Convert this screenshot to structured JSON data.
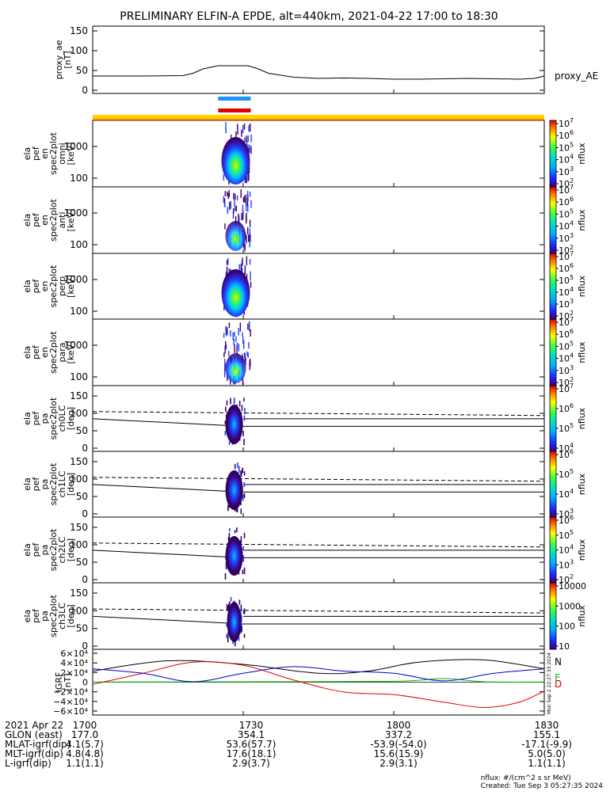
{
  "title": "PRELIMINARY ELFIN-A EPDE, alt=440km, 2021-04-22 17:00 to 18:30",
  "colors": {
    "background": "#ffffff",
    "axis": "#000000",
    "sci_zone_bar": "#ffd400",
    "sci_zone_edge": "#ff7f00",
    "blue_bar": "#1e90ff",
    "red_bar": "#e00000",
    "igrf_N": "#000000",
    "igrf_E": "#00c000",
    "igrf_D": "#e00000",
    "igrf_blue": "#0000d0"
  },
  "panels": [
    {
      "id": "proxy_ae",
      "ylabel_lines": [
        "proxy_ae",
        "[nT]"
      ],
      "right_label": "proxy_AE",
      "yticks": [
        "150",
        "100",
        "50",
        "0"
      ]
    },
    {
      "id": "spec-omni",
      "ylabel_lines": [
        "ela",
        "pef",
        "en",
        "spec2plot",
        "omni",
        "[keV]"
      ],
      "yticks": [
        "1000",
        "100"
      ],
      "cbar_label": "nflux"
    },
    {
      "id": "spec-anti",
      "ylabel_lines": [
        "ela",
        "pef",
        "en",
        "spec2plot",
        "anti",
        "[keV]"
      ],
      "yticks": [
        "1000",
        "100"
      ],
      "cbar_label": "nflux"
    },
    {
      "id": "spec-perp",
      "ylabel_lines": [
        "ela",
        "pef",
        "en",
        "spec2plot",
        "perp",
        "[keV]"
      ],
      "yticks": [
        "1000",
        "100"
      ],
      "cbar_label": "nflux"
    },
    {
      "id": "spec-para",
      "ylabel_lines": [
        "ela",
        "pef",
        "en",
        "spec2plot",
        "para",
        "[keV]"
      ],
      "yticks": [
        "1000",
        "100"
      ],
      "cbar_label": "nflux"
    },
    {
      "id": "pa-ch0",
      "ylabel_lines": [
        "ela",
        "pef",
        "pa",
        "spec2plot",
        "ch0LC",
        "[deg]"
      ],
      "yticks": [
        "150",
        "100",
        "50",
        "0"
      ],
      "cbar_label": "nflux"
    },
    {
      "id": "pa-ch1",
      "ylabel_lines": [
        "ela",
        "pef",
        "pa",
        "spec2plot",
        "ch1LC",
        "[deg]"
      ],
      "yticks": [
        "150",
        "100",
        "50",
        "0"
      ],
      "cbar_label": "nflux"
    },
    {
      "id": "pa-ch2",
      "ylabel_lines": [
        "ela",
        "pef",
        "pa",
        "spec2plot",
        "ch2LC",
        "[deg]"
      ],
      "yticks": [
        "150",
        "100",
        "50",
        "0"
      ],
      "cbar_label": "nflux"
    },
    {
      "id": "pa-ch3",
      "ylabel_lines": [
        "ela",
        "pef",
        "pa",
        "spec2plot",
        "ch3LC",
        "[deg]"
      ],
      "yticks": [
        "150",
        "100",
        "50",
        "0"
      ],
      "cbar_label": "nflux"
    },
    {
      "id": "igrf",
      "ylabel_lines": [
        "IGRF",
        "[nT]"
      ],
      "yticks": [
        "6×10⁴",
        "4×10⁴",
        "2×10⁴",
        "0",
        "−2×10⁴",
        "−4×10⁴",
        "−6×10⁴"
      ],
      "legend": [
        "N",
        "E",
        "D"
      ],
      "stamp": "Mon Sep  2 22:27:33 2024"
    }
  ],
  "colorbars": [
    {
      "panel": "spec-omni",
      "exps": [
        "7",
        "6",
        "5",
        "4",
        "3",
        "2"
      ]
    },
    {
      "panel": "spec-anti",
      "exps": [
        "7",
        "6",
        "5",
        "4",
        "3",
        "2"
      ]
    },
    {
      "panel": "spec-perp",
      "exps": [
        "7",
        "6",
        "5",
        "4",
        "3",
        "2"
      ]
    },
    {
      "panel": "spec-para",
      "exps": [
        "7",
        "6",
        "5",
        "4",
        "3",
        "2"
      ]
    },
    {
      "panel": "pa-ch0",
      "exps": [
        "7",
        "6",
        "5",
        "4"
      ]
    },
    {
      "panel": "pa-ch1",
      "exps": [
        "6",
        "5",
        "4",
        "3"
      ]
    },
    {
      "panel": "pa-ch2",
      "exps": [
        "6",
        "5",
        "4",
        "3",
        "2"
      ]
    },
    {
      "panel": "pa-ch3",
      "plain_ticks": [
        "10000",
        "1000",
        "100",
        "10"
      ]
    }
  ],
  "ephemeris": {
    "rows": [
      {
        "label": "2021 Apr 22",
        "values": [
          "1700",
          "1730",
          "1800",
          "1830"
        ]
      },
      {
        "label": "GLON (east)",
        "values": [
          "177.0",
          "354.1",
          "337.2",
          "155.1"
        ]
      },
      {
        "label": "MLAT-igrf(dip)",
        "values": [
          "4.1(5.7)",
          "53.6(57.7)",
          "-53.9(-54.0)",
          "-17.1(-9.9)"
        ]
      },
      {
        "label": "MLT-igrf(dip)",
        "values": [
          "4.8(4.8)",
          "17.6(18.1)",
          "15.6(15.9)",
          "5.0(5.0)"
        ]
      },
      {
        "label": "L-igrf(dip)",
        "values": [
          "1.1(1.1)",
          "2.9(3.7)",
          "2.9(3.1)",
          "1.1(1.1)"
        ]
      }
    ]
  },
  "footer": {
    "units": "nflux: #/(cm^2 s sr MeV)",
    "created": "Created: Tue Sep  3 05:27:35 2024"
  },
  "chart_data": {
    "type": "line",
    "title": "PRELIMINARY ELFIN-A EPDE, alt=440km, 2021-04-22 17:00 to 18:30",
    "x_ticks": [
      "1700",
      "1730",
      "1800",
      "1830"
    ],
    "x_range_minutes": [
      0,
      90
    ],
    "proxy_ae": {
      "ylim": [
        0,
        150
      ],
      "x": [
        0,
        10,
        18,
        20,
        22,
        25,
        28,
        31,
        33,
        35,
        40,
        45,
        50,
        55,
        60,
        65,
        70,
        75,
        80,
        85,
        88,
        90
      ],
      "y": [
        36,
        36,
        37,
        43,
        54,
        62,
        62,
        62,
        54,
        43,
        33,
        30,
        31,
        30,
        28,
        28,
        29,
        30,
        29,
        28,
        30,
        36
      ]
    },
    "spectra_yrange_keV": [
      63,
      6000
    ],
    "pitch_angle_yrange_deg": [
      0,
      160
    ],
    "pitch_angle_lines": {
      "solid_start_deg": 90,
      "solid_end_deg": 67,
      "loss_cone_dashed_deg": 112,
      "loss_cone_dashed_end_deg": 100
    },
    "igrf": {
      "ylim": [
        -65000,
        65000
      ],
      "series": [
        {
          "name": "N",
          "x": [
            0,
            15,
            30,
            45,
            55,
            65,
            78,
            90
          ],
          "y": [
            25000,
            48000,
            40000,
            20000,
            25000,
            45000,
            50000,
            30000
          ]
        },
        {
          "name": "E",
          "x": [
            0,
            30,
            60,
            70,
            78,
            90
          ],
          "y": [
            300,
            1000,
            2000,
            8000,
            1000,
            500
          ]
        },
        {
          "name": "D",
          "x": [
            0,
            10,
            20,
            30,
            40,
            50,
            60,
            70,
            78,
            85,
            90
          ],
          "y": [
            -5000,
            20000,
            45000,
            38000,
            5000,
            -22000,
            -28000,
            -45000,
            -57000,
            -45000,
            -20000
          ]
        },
        {
          "x": [
            0,
            10,
            20,
            30,
            40,
            50,
            60,
            70,
            80,
            90
          ],
          "y": [
            30000,
            20000,
            1000,
            20000,
            35000,
            25000,
            20000,
            3000,
            20000,
            30000
          ]
        }
      ]
    }
  }
}
